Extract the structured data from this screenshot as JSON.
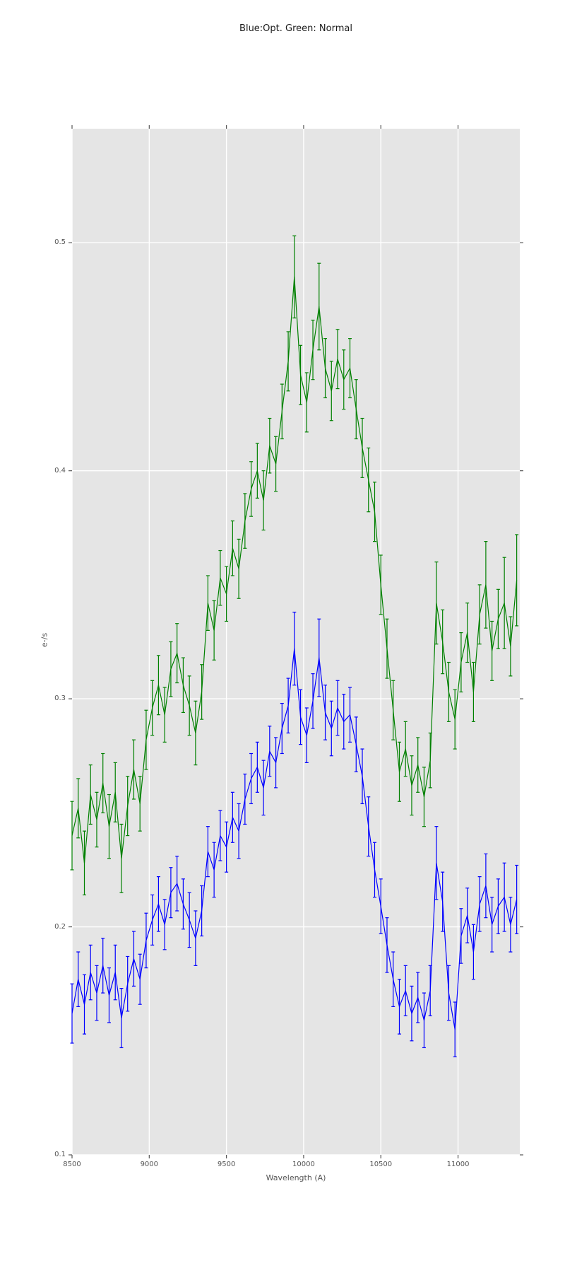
{
  "chart_data": {
    "type": "line",
    "title": "Blue:Opt. Green: Normal",
    "xlabel": "Wavelength (A)",
    "ylabel": "e-/s",
    "xlim": [
      8500,
      11400
    ],
    "ylim": [
      0.1,
      0.55
    ],
    "x_ticks": [
      8500,
      9000,
      9500,
      10000,
      10500,
      11000
    ],
    "x_tick_labels": [
      "8500",
      "9000",
      "9500",
      "10000",
      "10500",
      "11000"
    ],
    "y_ticks": [
      0.1,
      0.2,
      0.3,
      0.4,
      0.5
    ],
    "y_tick_labels": [
      "0.1",
      "0.2",
      "0.3",
      "0.4",
      "0.5"
    ],
    "grid": true,
    "legend_position": "none",
    "style": "ggplot",
    "plot_background_color": "#e5e5e5",
    "grid_color": "#ffffff",
    "tick_color": "#555555",
    "title_color": "#1a1a1a",
    "error_bars": true,
    "x": [
      8500,
      8540,
      8580,
      8620,
      8660,
      8700,
      8740,
      8780,
      8820,
      8860,
      8900,
      8940,
      8980,
      9020,
      9060,
      9100,
      9140,
      9180,
      9220,
      9260,
      9300,
      9340,
      9380,
      9420,
      9460,
      9500,
      9540,
      9580,
      9620,
      9660,
      9700,
      9740,
      9780,
      9820,
      9860,
      9900,
      9940,
      9980,
      10020,
      10060,
      10100,
      10140,
      10180,
      10220,
      10260,
      10300,
      10340,
      10380,
      10420,
      10460,
      10500,
      10540,
      10580,
      10620,
      10660,
      10700,
      10740,
      10780,
      10820,
      10860,
      10900,
      10940,
      10980,
      11020,
      11060,
      11100,
      11140,
      11180,
      11220,
      11260,
      11300,
      11340,
      11380
    ],
    "series": [
      {
        "name": "Opt.",
        "color": "#0000ff",
        "y": [
          0.162,
          0.177,
          0.166,
          0.18,
          0.171,
          0.183,
          0.17,
          0.18,
          0.16,
          0.175,
          0.186,
          0.177,
          0.194,
          0.203,
          0.21,
          0.201,
          0.215,
          0.219,
          0.21,
          0.203,
          0.195,
          0.207,
          0.233,
          0.225,
          0.24,
          0.235,
          0.248,
          0.242,
          0.256,
          0.265,
          0.27,
          0.261,
          0.277,
          0.272,
          0.287,
          0.297,
          0.322,
          0.292,
          0.284,
          0.299,
          0.318,
          0.294,
          0.287,
          0.296,
          0.29,
          0.293,
          0.28,
          0.266,
          0.244,
          0.225,
          0.209,
          0.192,
          0.177,
          0.165,
          0.172,
          0.162,
          0.169,
          0.159,
          0.172,
          0.228,
          0.211,
          0.171,
          0.155,
          0.196,
          0.205,
          0.189,
          0.21,
          0.218,
          0.201,
          0.209,
          0.213,
          0.201,
          0.212
        ],
        "yerr": [
          0.013,
          0.012,
          0.013,
          0.012,
          0.012,
          0.012,
          0.012,
          0.012,
          0.013,
          0.012,
          0.012,
          0.011,
          0.012,
          0.011,
          0.012,
          0.011,
          0.011,
          0.012,
          0.011,
          0.012,
          0.012,
          0.011,
          0.011,
          0.012,
          0.011,
          0.011,
          0.011,
          0.012,
          0.011,
          0.011,
          0.011,
          0.012,
          0.011,
          0.011,
          0.011,
          0.012,
          0.016,
          0.012,
          0.012,
          0.012,
          0.017,
          0.012,
          0.012,
          0.012,
          0.012,
          0.012,
          0.012,
          0.012,
          0.013,
          0.012,
          0.012,
          0.012,
          0.012,
          0.012,
          0.011,
          0.012,
          0.011,
          0.012,
          0.011,
          0.016,
          0.013,
          0.012,
          0.012,
          0.012,
          0.012,
          0.012,
          0.012,
          0.014,
          0.012,
          0.012,
          0.015,
          0.012,
          0.015
        ]
      },
      {
        "name": "Normal",
        "color": "#008000",
        "y": [
          0.24,
          0.252,
          0.228,
          0.258,
          0.247,
          0.263,
          0.244,
          0.259,
          0.23,
          0.253,
          0.269,
          0.254,
          0.282,
          0.296,
          0.306,
          0.293,
          0.313,
          0.32,
          0.306,
          0.297,
          0.285,
          0.303,
          0.342,
          0.33,
          0.353,
          0.346,
          0.366,
          0.357,
          0.378,
          0.392,
          0.4,
          0.387,
          0.411,
          0.403,
          0.426,
          0.448,
          0.485,
          0.442,
          0.43,
          0.453,
          0.472,
          0.445,
          0.435,
          0.449,
          0.44,
          0.445,
          0.427,
          0.41,
          0.396,
          0.382,
          0.35,
          0.322,
          0.295,
          0.268,
          0.278,
          0.262,
          0.271,
          0.257,
          0.273,
          0.342,
          0.325,
          0.303,
          0.291,
          0.316,
          0.329,
          0.303,
          0.337,
          0.35,
          0.321,
          0.335,
          0.342,
          0.323,
          0.352
        ],
        "yerr": [
          0.015,
          0.013,
          0.014,
          0.013,
          0.012,
          0.013,
          0.014,
          0.013,
          0.015,
          0.013,
          0.013,
          0.012,
          0.013,
          0.012,
          0.013,
          0.012,
          0.012,
          0.013,
          0.012,
          0.013,
          0.014,
          0.012,
          0.012,
          0.013,
          0.012,
          0.012,
          0.012,
          0.013,
          0.012,
          0.012,
          0.012,
          0.013,
          0.012,
          0.012,
          0.012,
          0.013,
          0.018,
          0.013,
          0.013,
          0.013,
          0.019,
          0.013,
          0.013,
          0.013,
          0.013,
          0.013,
          0.013,
          0.013,
          0.014,
          0.013,
          0.013,
          0.013,
          0.013,
          0.013,
          0.012,
          0.013,
          0.012,
          0.013,
          0.012,
          0.018,
          0.014,
          0.013,
          0.013,
          0.013,
          0.013,
          0.013,
          0.013,
          0.019,
          0.013,
          0.013,
          0.02,
          0.013,
          0.02
        ]
      }
    ]
  }
}
